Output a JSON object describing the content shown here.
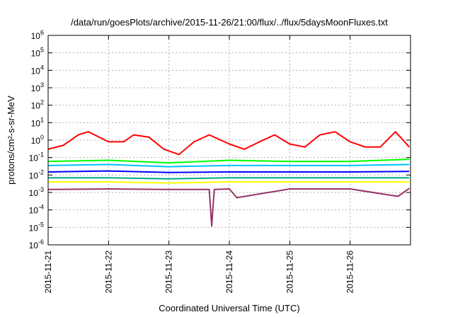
{
  "chart_data": {
    "type": "line",
    "title": "/data/run/goesPlots/archive/2015-11-26/21:00/flux/../flux/5daysMoonFluxes.txt",
    "xlabel": "Coordinated Universal Time (UTC)",
    "ylabel": "protons/cm²-s-sr-MeV",
    "x_range": [
      "2015-11-21T00:00",
      "2015-11-27T00:00"
    ],
    "x_tick_labels": [
      "2015-11-21",
      "2015-11-22",
      "2015-11-23",
      "2015-11-24",
      "2015-11-25",
      "2015-11-26"
    ],
    "y_scale": "log",
    "ylim": [
      1e-06,
      1000000.0
    ],
    "y_tick_values": [
      -6,
      -5,
      -4,
      -3,
      -2,
      -1,
      0,
      1,
      2,
      3,
      4,
      5,
      6
    ],
    "grid": true,
    "legend": "none",
    "series": [
      {
        "color": "#ff0000",
        "x": [
          "2015-11-21T00:00",
          "2015-11-21T06:00",
          "2015-11-21T12:00",
          "2015-11-21T16:00",
          "2015-11-22T00:00",
          "2015-11-22T06:00",
          "2015-11-22T10:00",
          "2015-11-22T16:00",
          "2015-11-22T22:00",
          "2015-11-23T04:00",
          "2015-11-23T10:00",
          "2015-11-23T16:00",
          "2015-11-24T00:00",
          "2015-11-24T06:00",
          "2015-11-24T12:00",
          "2015-11-24T18:00",
          "2015-11-25T00:00",
          "2015-11-25T06:00",
          "2015-11-25T12:00",
          "2015-11-25T18:00",
          "2015-11-26T00:00",
          "2015-11-26T06:00",
          "2015-11-26T12:00",
          "2015-11-26T18:00",
          "2015-11-26T23:30"
        ],
        "y": [
          0.3,
          0.5,
          2.0,
          3.0,
          0.8,
          0.8,
          2.0,
          1.5,
          0.3,
          0.15,
          0.8,
          2.0,
          0.6,
          0.3,
          0.8,
          2.0,
          0.6,
          0.4,
          2.0,
          3.0,
          0.8,
          0.4,
          0.4,
          3.0,
          0.4
        ]
      },
      {
        "color": "#00ff00",
        "x": [
          "2015-11-21T00:00",
          "2015-11-22T00:00",
          "2015-11-23T00:00",
          "2015-11-24T00:00",
          "2015-11-25T00:00",
          "2015-11-26T00:00",
          "2015-11-26T23:30"
        ],
        "y": [
          0.06,
          0.07,
          0.05,
          0.07,
          0.06,
          0.06,
          0.08
        ]
      },
      {
        "color": "#00c0ff",
        "x": [
          "2015-11-21T00:00",
          "2015-11-22T00:00",
          "2015-11-23T00:00",
          "2015-11-24T00:00",
          "2015-11-25T00:00",
          "2015-11-26T00:00",
          "2015-11-26T23:30"
        ],
        "y": [
          0.035,
          0.04,
          0.03,
          0.035,
          0.035,
          0.035,
          0.04
        ]
      },
      {
        "color": "#0000ff",
        "x": [
          "2015-11-21T00:00",
          "2015-11-22T00:00",
          "2015-11-23T00:00",
          "2015-11-24T00:00",
          "2015-11-25T00:00",
          "2015-11-26T00:00",
          "2015-11-26T23:30"
        ],
        "y": [
          0.015,
          0.017,
          0.014,
          0.015,
          0.015,
          0.015,
          0.016
        ]
      },
      {
        "color": "#00aa88",
        "x": [
          "2015-11-21T00:00",
          "2015-11-22T00:00",
          "2015-11-23T00:00",
          "2015-11-24T00:00",
          "2015-11-25T00:00",
          "2015-11-26T00:00",
          "2015-11-26T23:30"
        ],
        "y": [
          0.007,
          0.007,
          0.006,
          0.007,
          0.007,
          0.007,
          0.007
        ]
      },
      {
        "color": "#ffff00",
        "x": [
          "2015-11-21T00:00",
          "2015-11-22T00:00",
          "2015-11-23T00:00",
          "2015-11-24T00:00",
          "2015-11-25T00:00",
          "2015-11-26T00:00",
          "2015-11-26T23:30"
        ],
        "y": [
          0.004,
          0.004,
          0.0035,
          0.004,
          0.004,
          0.004,
          0.004
        ]
      },
      {
        "color": "#993366",
        "x": [
          "2015-11-21T00:00",
          "2015-11-22T00:00",
          "2015-11-23T00:00",
          "2015-11-23T16:00",
          "2015-11-23T17:00",
          "2015-11-23T18:00",
          "2015-11-24T00:00",
          "2015-11-24T03:00",
          "2015-11-25T00:00",
          "2015-11-26T00:00",
          "2015-11-26T19:00",
          "2015-11-26T23:30"
        ],
        "y": [
          0.0015,
          0.0016,
          0.0015,
          0.0015,
          1.2e-05,
          0.0015,
          0.0016,
          0.0005,
          0.0016,
          0.0016,
          0.0006,
          0.0017
        ]
      }
    ]
  }
}
